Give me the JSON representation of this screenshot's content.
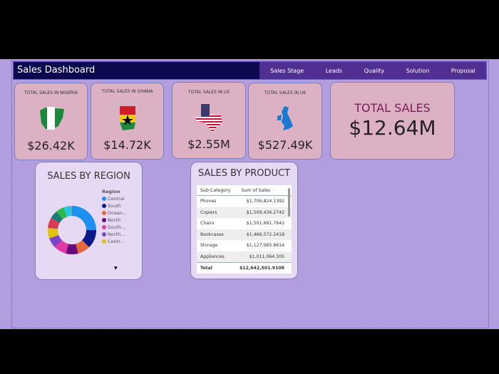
{
  "header": {
    "title": "Sales Dashboard",
    "nav": [
      "Sales Stage",
      "Leads",
      "Quality",
      "Solution",
      "Proposal"
    ]
  },
  "kpis": [
    {
      "label": "TOTAL SALES IN NIGERIA",
      "value": "$26.42K",
      "icon": "nigeria-flag-map-icon"
    },
    {
      "label": "TOTAL SALES IN GHANA",
      "value": "$14.72K",
      "icon": "ghana-flag-map-icon"
    },
    {
      "label": "TOTAL SALES IN US",
      "value": "$2.55M",
      "icon": "us-flag-texas-icon"
    },
    {
      "label": "TOTAL SALES IN UK",
      "value": "$527.49K",
      "icon": "uk-map-icon"
    }
  ],
  "total": {
    "label": "TOTAL SALES",
    "value": "$12.64M"
  },
  "region": {
    "title": "SALES BY REGION",
    "legend_title": "Region",
    "legend": [
      {
        "name": "Central",
        "color": "#1e90f0"
      },
      {
        "name": "South",
        "color": "#0a1a8a"
      },
      {
        "name": "Ocean...",
        "color": "#e2693a"
      },
      {
        "name": "North",
        "color": "#6a0a7a"
      },
      {
        "name": "South...",
        "color": "#e03aa8"
      },
      {
        "name": "North...",
        "color": "#7a45c8"
      },
      {
        "name": "Centr...",
        "color": "#e3c10e"
      }
    ],
    "chart_data": {
      "type": "pie",
      "segments_deg": [
        90,
        45,
        30,
        30,
        30,
        25,
        25,
        25,
        20,
        20,
        17,
        3
      ],
      "colors": [
        "#1e90f0",
        "#0a1a8a",
        "#e2693a",
        "#6a0a7a",
        "#e03aa8",
        "#7a45c8",
        "#e3c10e",
        "#d83a55",
        "#1e7a78",
        "#2eb84a",
        "#22c8e8",
        "#8899aa"
      ]
    }
  },
  "product": {
    "title": "SALES BY PRODUCT",
    "columns": [
      "Sub-Category",
      "Sum of Sales"
    ],
    "rows": [
      [
        "Phones",
        "$1,706,824.1392"
      ],
      [
        "Copiers",
        "$1,509,436.2742"
      ],
      [
        "Chairs",
        "$1,501,681.7642"
      ],
      [
        "Bookcases",
        "$1,466,572.2418"
      ],
      [
        "Storage",
        "$1,127,085.8614"
      ],
      [
        "Appliances",
        "$1,011,064.305"
      ]
    ],
    "total": [
      "Total",
      "$12,642,501.9108"
    ]
  }
}
